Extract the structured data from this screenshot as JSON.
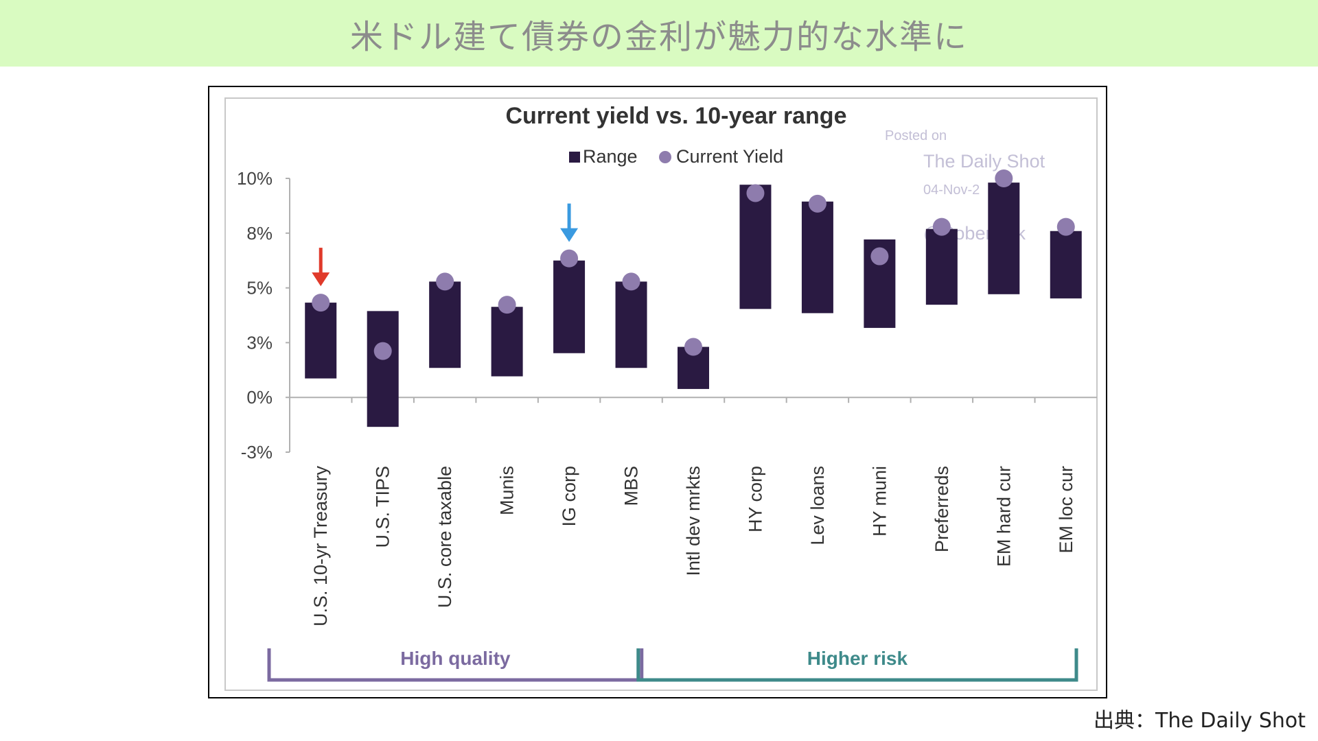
{
  "header": {
    "title": "米ドル建て債券の金利が魅力的な水準に"
  },
  "source": {
    "text": "出典：The Daily Shot"
  },
  "watermark": {
    "line1": "Posted on",
    "line2": "The Daily Shot",
    "line3": "04-Nov-2",
    "line4": "@Soberlook"
  },
  "chart_data": {
    "type": "bar",
    "title": "Current yield vs. 10-year range",
    "legend": {
      "position": "top",
      "entries": [
        "Range",
        "Current Yield"
      ]
    },
    "yticks": [
      "10%",
      "8%",
      "5%",
      "3%",
      "0%",
      "-3%"
    ],
    "ylim": [
      -3,
      10
    ],
    "categories": [
      "U.S. 10-yr Treasury",
      "U.S. TIPS",
      "U.S. core taxable",
      "Munis",
      "IG corp",
      "MBS",
      "Intl dev mrkts",
      "HY corp",
      "Lev loans",
      "HY muni",
      "Preferreds",
      "EM hard cur",
      "EM loc cur"
    ],
    "series": [
      {
        "name": "Range",
        "low": [
          0.5,
          -1.8,
          1.0,
          0.6,
          1.7,
          1.0,
          0.0,
          3.8,
          3.6,
          2.9,
          4.0,
          4.5,
          4.3
        ],
        "high": [
          4.1,
          3.7,
          5.1,
          3.9,
          6.1,
          5.1,
          2.0,
          9.7,
          8.9,
          7.1,
          7.6,
          9.8,
          7.5
        ]
      },
      {
        "name": "Current Yield",
        "values": [
          4.1,
          1.8,
          5.1,
          4.0,
          6.2,
          5.1,
          2.0,
          9.3,
          8.8,
          6.3,
          7.7,
          10.0,
          7.7
        ]
      }
    ],
    "groups": [
      {
        "label": "High quality",
        "from": 0,
        "to": 5,
        "color": "#7b6aa0"
      },
      {
        "label": "Higher risk",
        "from": 6,
        "to": 12,
        "color": "#3e8a8a"
      }
    ],
    "highlight_arrows": [
      {
        "category_index": 0,
        "color": "#e03a2a"
      },
      {
        "category_index": 4,
        "color": "#3a9ae0"
      }
    ],
    "colors": {
      "range": "#2a1a42",
      "current": "#8e7cad"
    }
  }
}
